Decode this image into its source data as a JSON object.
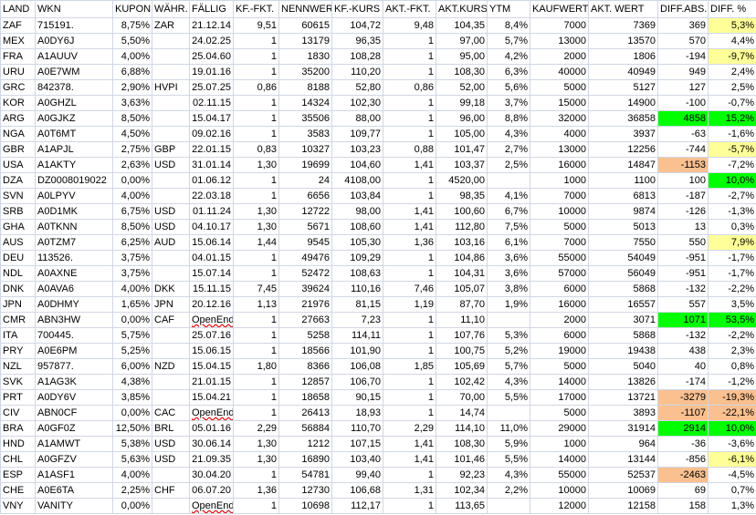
{
  "table": {
    "headers": [
      "LAND",
      "WKN",
      "KUPON",
      "WÄHR.",
      "FÄLLIG",
      "KF.-FKT.",
      "NENNWERT",
      "KF.-KURS",
      "AKT.-FKT.",
      "AKT.KURS",
      "YTM",
      "KAUFWERT",
      "AKT. WERT",
      "DIFF.ABS.",
      "DIFF. %"
    ],
    "rows": [
      [
        "ZAF",
        "715191.",
        "8,75%",
        "ZAR",
        "21.12.14",
        "9,51",
        "60615",
        "104,72",
        "9,48",
        "104,35",
        "8,4%",
        "7000",
        "7369",
        "369",
        "5,3%"
      ],
      [
        "MEX",
        "A0DY6J",
        "5,50%",
        null,
        "24.02.25",
        "1",
        "13179",
        "96,35",
        "1",
        "97,00",
        "5,7%",
        "13000",
        "13570",
        "570",
        "4,4%"
      ],
      [
        "FRA",
        "A1AUUV",
        "4,00%",
        null,
        "25.04.60",
        "1",
        "1830",
        "108,28",
        "1",
        "95,00",
        "4,2%",
        "2000",
        "1806",
        "-194",
        "-9,7%"
      ],
      [
        "URU",
        "A0E7WM",
        "6,88%",
        null,
        "19.01.16",
        "1",
        "35200",
        "110,20",
        "1",
        "108,30",
        "6,3%",
        "40000",
        "40949",
        "949",
        "2,4%"
      ],
      [
        "GRC",
        "842378.",
        "2,90%",
        "HVPI",
        "25.07.25",
        "0,86",
        "8188",
        "52,80",
        "0,86",
        "52,00",
        "5,6%",
        "5000",
        "5127",
        "127",
        "2,5%"
      ],
      [
        "KOR",
        "A0GHZL",
        "3,63%",
        null,
        "02.11.15",
        "1",
        "14324",
        "102,30",
        "1",
        "99,18",
        "3,7%",
        "15000",
        "14900",
        "-100",
        "-0,7%"
      ],
      [
        "ARG",
        "A0GJKZ",
        "8,50%",
        null,
        "15.04.17",
        "1",
        "35506",
        "88,00",
        "1",
        "96,00",
        "8,8%",
        "32000",
        "36858",
        "4858",
        "15,2%"
      ],
      [
        "NGA",
        "A0T6MT",
        "4,50%",
        null,
        "09.02.16",
        "1",
        "3583",
        "109,77",
        "1",
        "105,00",
        "4,3%",
        "4000",
        "3937",
        "-63",
        "-1,6%"
      ],
      [
        "GBR",
        "A1APJL",
        "2,75%",
        "GBP",
        "22.01.15",
        "0,83",
        "10327",
        "103,23",
        "0,88",
        "101,47",
        "2,7%",
        "13000",
        "12256",
        "-744",
        "-5,7%"
      ],
      [
        "USA",
        "A1AKTY",
        "2,63%",
        "USD",
        "31.01.14",
        "1,30",
        "19699",
        "104,60",
        "1,41",
        "103,37",
        "2,5%",
        "16000",
        "14847",
        "-1153",
        "-7,2%"
      ],
      [
        "DZA",
        "DZ0008019022",
        "0,00%",
        null,
        "01.06.12",
        "1",
        "24",
        "4108,00",
        "1",
        "4520,00",
        null,
        "1000",
        "1100",
        "100",
        "10,0%"
      ],
      [
        "SVN",
        "A0LPYV",
        "4,00%",
        null,
        "22.03.18",
        "1",
        "6656",
        "103,84",
        "1",
        "98,35",
        "4,1%",
        "7000",
        "6813",
        "-187",
        "-2,7%"
      ],
      [
        "SRB",
        "A0D1MK",
        "6,75%",
        "USD",
        "01.11.24",
        "1,30",
        "12722",
        "98,00",
        "1,41",
        "100,60",
        "6,7%",
        "10000",
        "9874",
        "-126",
        "-1,3%"
      ],
      [
        "GHA",
        "A0TKNN",
        "8,50%",
        "USD",
        "04.10.17",
        "1,30",
        "5671",
        "108,60",
        "1,41",
        "112,80",
        "7,5%",
        "5000",
        "5013",
        "13",
        "0,3%"
      ],
      [
        "AUS",
        "A0TZM7",
        "6,25%",
        "AUD",
        "15.06.14",
        "1,44",
        "9545",
        "105,30",
        "1,36",
        "103,16",
        "6,1%",
        "7000",
        "7550",
        "550",
        "7,9%"
      ],
      [
        "DEU",
        "113526.",
        "3,75%",
        null,
        "04.01.15",
        "1",
        "49476",
        "109,29",
        "1",
        "104,86",
        "3,6%",
        "55000",
        "54049",
        "-951",
        "-1,7%"
      ],
      [
        "NDL",
        "A0AXNE",
        "3,75%",
        null,
        "15.07.14",
        "1",
        "52472",
        "108,63",
        "1",
        "104,31",
        "3,6%",
        "57000",
        "56049",
        "-951",
        "-1,7%"
      ],
      [
        "DNK",
        "A0AVA6",
        "4,00%",
        "DKK",
        "15.11.15",
        "7,45",
        "39624",
        "110,16",
        "7,46",
        "105,07",
        "3,8%",
        "6000",
        "5868",
        "-132",
        "-2,2%"
      ],
      [
        "JPN",
        "A0DHMY",
        "1,65%",
        "JPN",
        "20.12.16",
        "1,13",
        "21976",
        "81,15",
        "1,19",
        "87,70",
        "1,9%",
        "16000",
        "16557",
        "557",
        "3,5%"
      ],
      [
        "CMR",
        "ABN3HW",
        "0,00%",
        "CAF",
        "OpenEnd",
        "1",
        "27663",
        "7,23",
        "1",
        "11,10",
        null,
        "2000",
        "3071",
        "1071",
        "53,5%"
      ],
      [
        "ITA",
        "700445.",
        "5,75%",
        null,
        "25.07.16",
        "1",
        "5258",
        "114,11",
        "1",
        "107,76",
        "5,3%",
        "6000",
        "5868",
        "-132",
        "-2,2%"
      ],
      [
        "PRY",
        "A0E6PM",
        "5,25%",
        null,
        "15.06.15",
        "1",
        "18566",
        "101,90",
        "1",
        "100,75",
        "5,2%",
        "19000",
        "19438",
        "438",
        "2,3%"
      ],
      [
        "NZL",
        "957877.",
        "6,00%",
        "NZD",
        "15.04.15",
        "1,80",
        "8366",
        "106,08",
        "1,85",
        "105,69",
        "5,7%",
        "5000",
        "5040",
        "40",
        "0,8%"
      ],
      [
        "SVK",
        "A1AG3K",
        "4,38%",
        null,
        "21.01.15",
        "1",
        "12857",
        "106,70",
        "1",
        "102,42",
        "4,3%",
        "14000",
        "13826",
        "-174",
        "-1,2%"
      ],
      [
        "PRT",
        "A0DY6V",
        "3,85%",
        null,
        "15.04.21",
        "1",
        "18658",
        "90,15",
        "1",
        "70,00",
        "5,5%",
        "17000",
        "13721",
        "-3279",
        "-19,3%"
      ],
      [
        "CIV",
        "ABN0CF",
        "0,00%",
        "CAC",
        "OpenEnd",
        "1",
        "26413",
        "18,93",
        "1",
        "14,74",
        null,
        "5000",
        "3893",
        "-1107",
        "-22,1%"
      ],
      [
        "BRA",
        "A0GF0Z",
        "12,50%",
        "BRL",
        "05.01.16",
        "2,29",
        "56884",
        "110,70",
        "2,29",
        "114,10",
        "11,0%",
        "29000",
        "31914",
        "2914",
        "10,0%"
      ],
      [
        "HND",
        "A1AMWT",
        "5,38%",
        "USD",
        "30.06.14",
        "1,30",
        "1212",
        "107,15",
        "1,41",
        "108,30",
        "5,9%",
        "1000",
        "964",
        "-36",
        "-3,6%"
      ],
      [
        "CHL",
        "A0GFZV",
        "5,63%",
        "USD",
        "21.09.35",
        "1,30",
        "16890",
        "103,40",
        "1,41",
        "101,46",
        "5,5%",
        "14000",
        "13144",
        "-856",
        "-6,1%"
      ],
      [
        "ESP",
        "A1ASF1",
        "4,00%",
        null,
        "30.04.20",
        "1",
        "54781",
        "99,40",
        "1",
        "92,23",
        "4,3%",
        "55000",
        "52537",
        "-2463",
        "-4,5%"
      ],
      [
        "CHE",
        "A0E6TA",
        "2,25%",
        "CHF",
        "06.07.20",
        "1,36",
        "12730",
        "106,68",
        "1,31",
        "102,34",
        "2,2%",
        "10000",
        "10069",
        "69",
        "0,7%"
      ],
      [
        "VNY",
        "VANITY",
        "0,00%",
        null,
        "OpenEnd",
        "1",
        "10698",
        "112,17",
        "1",
        "113,65",
        null,
        "12000",
        "12158",
        "158",
        "1,3%"
      ]
    ]
  }
}
